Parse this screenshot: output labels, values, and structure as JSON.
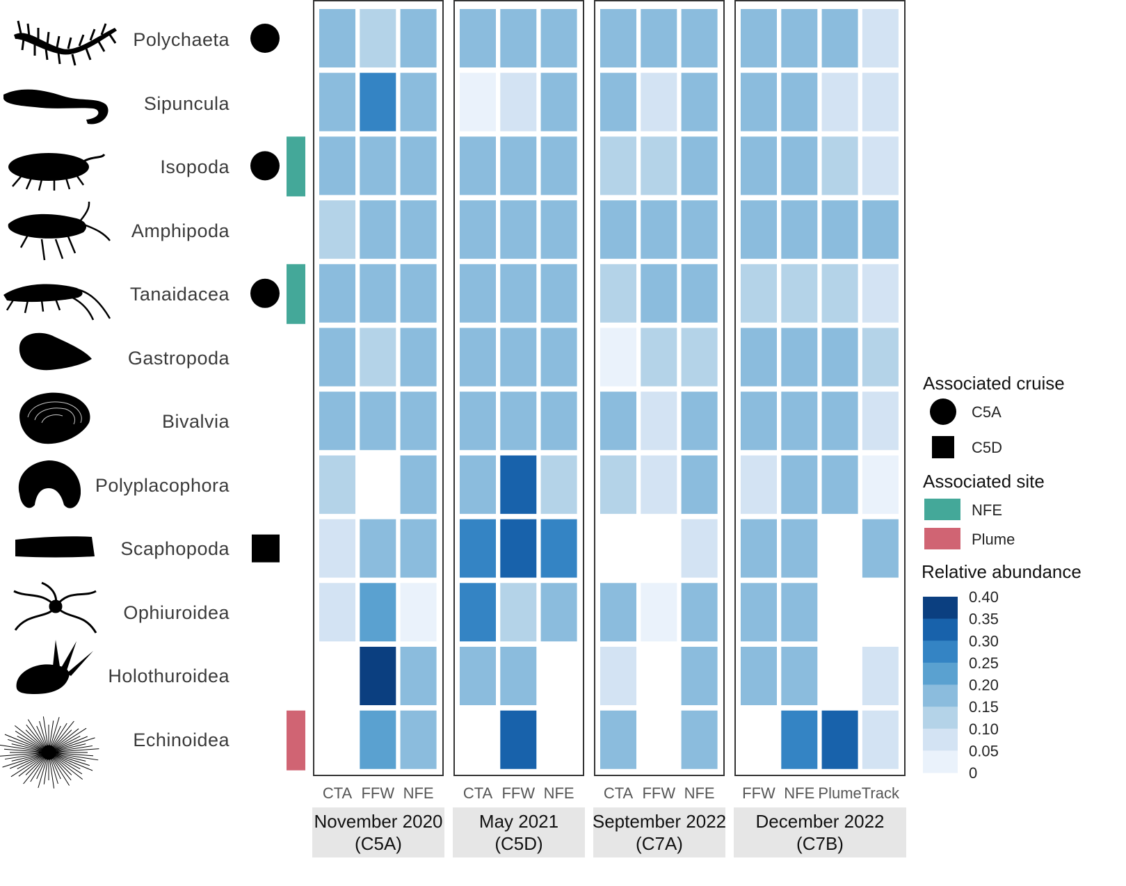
{
  "chart_data": {
    "type": "heatmap",
    "taxa": [
      "Polychaeta",
      "Sipuncula",
      "Isopoda",
      "Amphipoda",
      "Tanaidacea",
      "Gastropoda",
      "Bivalvia",
      "Polyplacophora",
      "Scaphopoda",
      "Ophiuroidea",
      "Holothuroidea",
      "Echinoidea"
    ],
    "associated_cruise": [
      "C5A",
      null,
      "C5A",
      null,
      "C5A",
      null,
      null,
      null,
      "C5D",
      null,
      null,
      null
    ],
    "associated_site": [
      null,
      null,
      "NFE",
      null,
      "NFE",
      null,
      null,
      null,
      null,
      null,
      null,
      "Plume"
    ],
    "panels": [
      {
        "title_line1": "November 2020",
        "title_line2": "(C5A)",
        "columns": [
          "CTA",
          "FFW",
          "NFE"
        ],
        "values": [
          [
            0.2,
            0.12,
            0.2
          ],
          [
            0.2,
            0.27,
            0.2
          ],
          [
            0.2,
            0.16,
            0.2
          ],
          [
            0.12,
            0.16,
            0.16
          ],
          [
            0.2,
            0.2,
            0.2
          ],
          [
            0.16,
            0.12,
            0.2
          ],
          [
            0.2,
            0.16,
            0.16
          ],
          [
            0.12,
            null,
            0.2
          ],
          [
            0.07,
            0.16,
            0.2
          ],
          [
            0.07,
            0.25,
            0.03
          ],
          [
            null,
            0.38,
            0.16
          ],
          [
            null,
            0.25,
            0.16
          ]
        ]
      },
      {
        "title_line1": "May 2021",
        "title_line2": "(C5D)",
        "columns": [
          "CTA",
          "FFW",
          "NFE"
        ],
        "values": [
          [
            0.2,
            0.16,
            0.16
          ],
          [
            0.03,
            0.07,
            0.2
          ],
          [
            0.16,
            0.16,
            0.2
          ],
          [
            0.16,
            0.16,
            0.2
          ],
          [
            0.16,
            0.2,
            0.2
          ],
          [
            0.16,
            0.2,
            0.2
          ],
          [
            0.16,
            0.16,
            0.2
          ],
          [
            0.2,
            0.33,
            0.12
          ],
          [
            0.27,
            0.33,
            0.27
          ],
          [
            0.27,
            0.12,
            0.16
          ],
          [
            0.16,
            0.2,
            null
          ],
          [
            null,
            0.33,
            null
          ]
        ]
      },
      {
        "title_line1": "September 2022",
        "title_line2": "(C7A)",
        "columns": [
          "CTA",
          "FFW",
          "NFE"
        ],
        "values": [
          [
            0.16,
            0.16,
            0.16
          ],
          [
            0.16,
            0.07,
            0.2
          ],
          [
            0.12,
            0.12,
            0.2
          ],
          [
            0.16,
            0.16,
            0.16
          ],
          [
            0.12,
            0.16,
            0.16
          ],
          [
            0.03,
            0.12,
            0.12
          ],
          [
            0.16,
            0.07,
            0.2
          ],
          [
            0.12,
            0.07,
            0.16
          ],
          [
            null,
            null,
            0.07
          ],
          [
            0.2,
            0.03,
            0.2
          ],
          [
            0.07,
            null,
            0.2
          ],
          [
            0.16,
            null,
            0.16
          ]
        ]
      },
      {
        "title_line1": "December 2022",
        "title_line2": "(C7B)",
        "columns": [
          "FFW",
          "NFE",
          "Plume",
          "Track"
        ],
        "values": [
          [
            0.16,
            0.16,
            0.16,
            0.07
          ],
          [
            0.2,
            0.16,
            0.07,
            0.07
          ],
          [
            0.16,
            0.2,
            0.12,
            0.07
          ],
          [
            0.16,
            0.16,
            0.2,
            0.16
          ],
          [
            0.12,
            0.12,
            0.12,
            0.07
          ],
          [
            0.2,
            0.16,
            0.16,
            0.12
          ],
          [
            0.16,
            0.16,
            0.16,
            0.07
          ],
          [
            0.07,
            0.2,
            0.2,
            0.03
          ],
          [
            0.16,
            0.16,
            null,
            0.16
          ],
          [
            0.2,
            0.2,
            null,
            null
          ],
          [
            0.2,
            0.2,
            null,
            0.07
          ],
          [
            null,
            0.27,
            0.33,
            0.07
          ]
        ]
      }
    ],
    "colorscale": {
      "breaks": [
        0,
        0.05,
        0.1,
        0.15,
        0.2,
        0.25,
        0.3,
        0.35,
        0.4
      ],
      "tick_labels": [
        "0.40",
        "0.35",
        "0.30",
        "0.25",
        "0.20",
        "0.15",
        "0.10",
        "0.05",
        "0"
      ],
      "colors": [
        "#eaf2fb",
        "#d3e3f3",
        "#b4d3e8",
        "#8bbcdd",
        "#5aa1d0",
        "#3484c4",
        "#1862ab",
        "#0b3f80"
      ]
    },
    "legend": {
      "cruise_title": "Associated cruise",
      "cruise_items": [
        {
          "label": "C5A",
          "shape": "circle"
        },
        {
          "label": "C5D",
          "shape": "square"
        }
      ],
      "site_title": "Associated site",
      "site_items": [
        {
          "label": "NFE",
          "color": "#44a899"
        },
        {
          "label": "Plume",
          "color": "#d06473"
        }
      ],
      "abundance_title": "Relative abundance"
    },
    "marker_colors": {
      "NFE": "#44a899",
      "Plume": "#d06473"
    },
    "legend_placement": "right"
  }
}
